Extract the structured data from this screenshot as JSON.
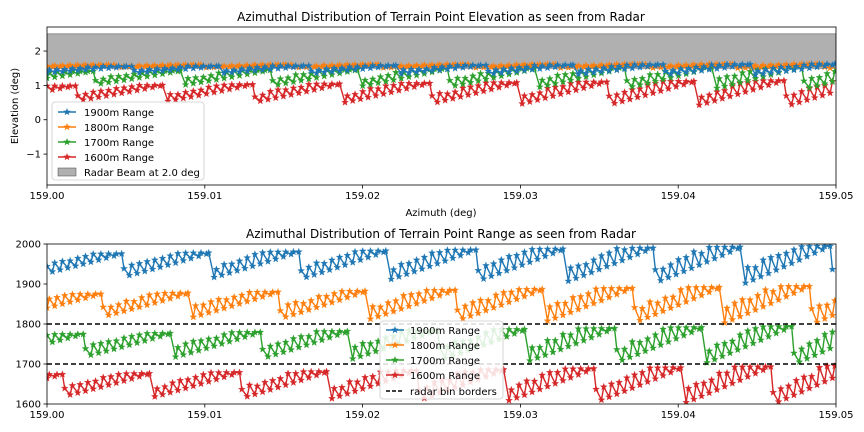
{
  "chart_data": [
    {
      "type": "line",
      "title": "Azimuthal Distribution of Terrain Point Elevation as seen from Radar",
      "xlabel": "Azimuth (deg)",
      "ylabel": "Elevation (deg)",
      "xlim": [
        159.0,
        159.05
      ],
      "ylim": [
        -1.9,
        2.7
      ],
      "xticks": [
        159.0,
        159.01,
        159.02,
        159.03,
        159.04,
        159.05
      ],
      "xtick_labels": [
        "159.00",
        "159.01",
        "159.02",
        "159.03",
        "159.04",
        "159.05"
      ],
      "yticks": [
        -1,
        0,
        1,
        2
      ],
      "ytick_labels": [
        "−1",
        "0",
        "1",
        "2"
      ],
      "legend_position": "lower-left",
      "band": {
        "name": "Radar Beam at 2.0 deg",
        "y_min": 1.5,
        "y_max": 2.5,
        "color": "#b0b0b0"
      },
      "series": [
        {
          "name": "1900m Range",
          "color": "#1f77b4",
          "marker": "star",
          "pattern": {
            "period_points": 23,
            "y_start": 1.3,
            "y_end": 1.62,
            "x_step": 0.000244,
            "drift": 6e-05
          }
        },
        {
          "name": "1800m Range",
          "color": "#ff7f0e",
          "marker": "star",
          "pattern": {
            "period_points": 23,
            "y_start": 1.5,
            "y_end": 1.62,
            "x_step": 0.000244,
            "drift": 6e-05
          }
        },
        {
          "name": "1700m Range",
          "color": "#2ca02c",
          "marker": "star",
          "pattern": {
            "period_points": 23,
            "y_start": 0.9,
            "y_end": 1.55,
            "x_step": 0.000244,
            "drift": 6e-05
          }
        },
        {
          "name": "1600m Range",
          "color": "#d62728",
          "marker": "star",
          "pattern": {
            "period_points": 23,
            "y_start": 0.4,
            "y_end": 1.15,
            "x_step": 0.000244,
            "drift": 6e-05
          }
        }
      ]
    },
    {
      "type": "line",
      "title": "Azimuthal Distribution of Terrain Point Range as seen from Radar",
      "xlabel": "",
      "ylabel": "",
      "xlim": [
        159.0,
        159.05
      ],
      "ylim": [
        1600,
        2000
      ],
      "xticks": [
        159.0,
        159.01,
        159.02,
        159.03,
        159.04,
        159.05
      ],
      "xtick_labels": [
        "159.00",
        "159.01",
        "159.02",
        "159.03",
        "159.04",
        "159.05"
      ],
      "yticks": [
        1600,
        1700,
        1800,
        1900,
        2000
      ],
      "ytick_labels": [
        "1600",
        "1700",
        "1800",
        "1900",
        "2000"
      ],
      "legend_position": "lower-center",
      "hlines": {
        "name": "radar bin borders",
        "values": [
          1700,
          1800
        ],
        "style": "dashed",
        "color": "#000000"
      },
      "series": [
        {
          "name": "1900m Range",
          "color": "#1f77b4",
          "marker": "star",
          "pattern": {
            "period_points": 23,
            "y_start": 1900,
            "y_end": 1995,
            "x_step": 0.000244,
            "drift": 6e-05
          }
        },
        {
          "name": "1800m Range",
          "color": "#ff7f0e",
          "marker": "star",
          "pattern": {
            "period_points": 23,
            "y_start": 1800,
            "y_end": 1895,
            "x_step": 0.000244,
            "drift": 6e-05
          }
        },
        {
          "name": "1700m Range",
          "color": "#2ca02c",
          "marker": "star",
          "pattern": {
            "period_points": 23,
            "y_start": 1700,
            "y_end": 1795,
            "x_step": 0.000244,
            "drift": 6e-05
          }
        },
        {
          "name": "1600m Range",
          "color": "#d62728",
          "marker": "star",
          "pattern": {
            "period_points": 23,
            "y_start": 1600,
            "y_end": 1695,
            "x_step": 0.000244,
            "drift": 6e-05
          }
        }
      ]
    }
  ]
}
